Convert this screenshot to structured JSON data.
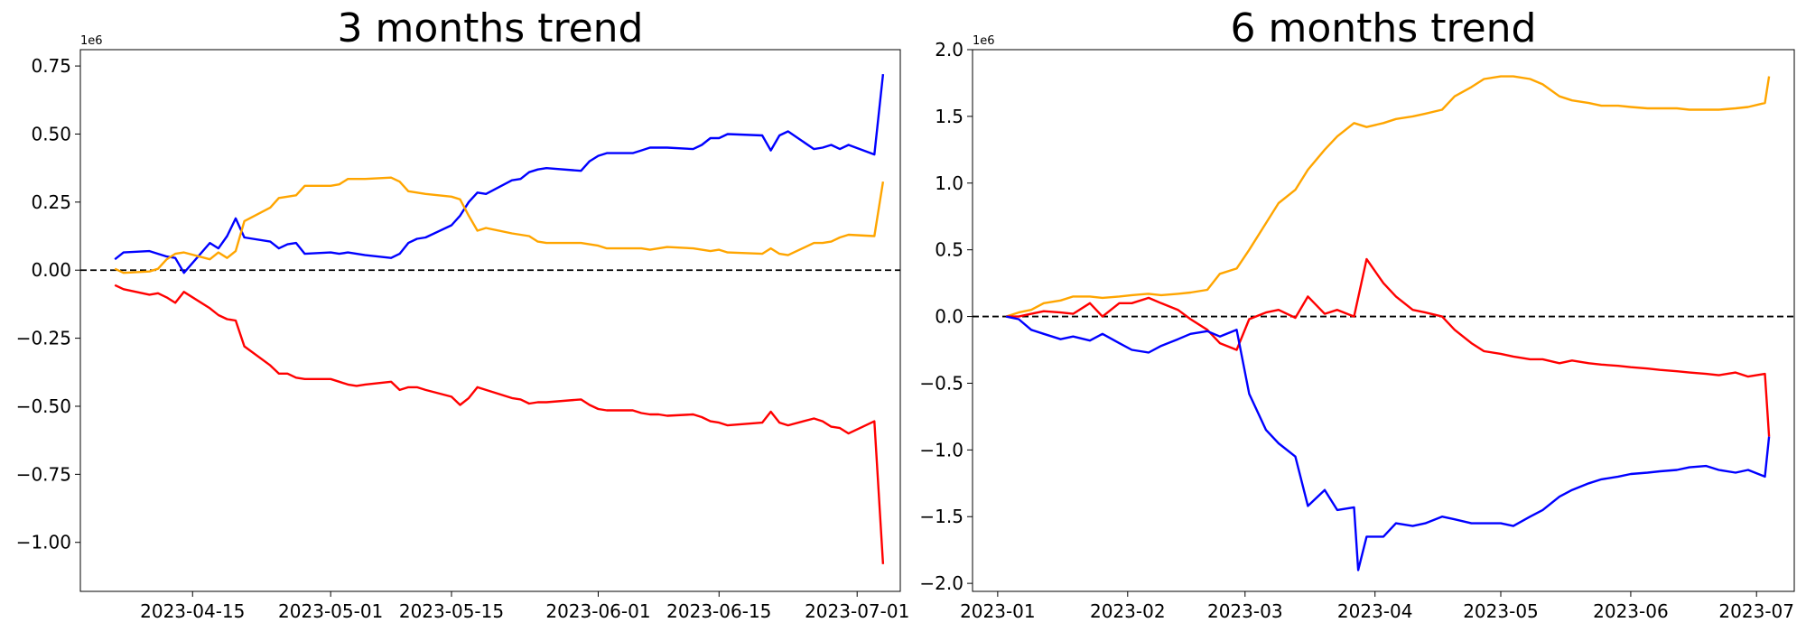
{
  "chart_data": [
    {
      "type": "line",
      "title": "3 months trend",
      "xlabel": "",
      "ylabel": "",
      "y_offset_label": "1e6",
      "xlim": [
        "2023-04-02",
        "2023-07-06"
      ],
      "ylim": [
        -1.18,
        0.81
      ],
      "x_ticks": [
        "2023-04-15",
        "2023-05-01",
        "2023-05-15",
        "2023-06-01",
        "2023-06-15",
        "2023-07-01"
      ],
      "y_ticks": [
        0.75,
        0.5,
        0.25,
        0.0,
        -0.25,
        -0.5,
        -0.75,
        -1.0
      ],
      "y_tick_labels": [
        "0.75",
        "0.50",
        "0.25",
        "0.00",
        "−0.25",
        "−0.50",
        "−0.75",
        "−1.00"
      ],
      "reference_line": {
        "y": 0,
        "style": "dashed",
        "color": "#000000"
      },
      "grid": false,
      "series": [
        {
          "color": "#0000ff",
          "x": [
            "2023-04-06",
            "2023-04-07",
            "2023-04-10",
            "2023-04-11",
            "2023-04-12",
            "2023-04-13",
            "2023-04-14",
            "2023-04-17",
            "2023-04-18",
            "2023-04-19",
            "2023-04-20",
            "2023-04-21",
            "2023-04-24",
            "2023-04-25",
            "2023-04-26",
            "2023-04-27",
            "2023-04-28",
            "2023-05-01",
            "2023-05-02",
            "2023-05-03",
            "2023-05-04",
            "2023-05-05",
            "2023-05-08",
            "2023-05-09",
            "2023-05-10",
            "2023-05-11",
            "2023-05-12",
            "2023-05-15",
            "2023-05-16",
            "2023-05-17",
            "2023-05-18",
            "2023-05-19",
            "2023-05-22",
            "2023-05-23",
            "2023-05-24",
            "2023-05-25",
            "2023-05-26",
            "2023-05-30",
            "2023-05-31",
            "2023-06-01",
            "2023-06-02",
            "2023-06-05",
            "2023-06-06",
            "2023-06-07",
            "2023-06-08",
            "2023-06-09",
            "2023-06-12",
            "2023-06-13",
            "2023-06-14",
            "2023-06-15",
            "2023-06-16",
            "2023-06-20",
            "2023-06-21",
            "2023-06-22",
            "2023-06-23",
            "2023-06-26",
            "2023-06-27",
            "2023-06-28",
            "2023-06-29",
            "2023-06-30",
            "2023-07-03",
            "2023-07-04"
          ],
          "values": [
            0.04,
            0.065,
            0.07,
            0.06,
            0.05,
            0.045,
            -0.01,
            0.1,
            0.08,
            0.125,
            0.19,
            0.12,
            0.105,
            0.08,
            0.095,
            0.1,
            0.06,
            0.065,
            0.06,
            0.065,
            0.06,
            0.055,
            0.045,
            0.06,
            0.1,
            0.115,
            0.12,
            0.165,
            0.2,
            0.25,
            0.285,
            0.28,
            0.33,
            0.335,
            0.36,
            0.37,
            0.375,
            0.365,
            0.4,
            0.42,
            0.43,
            0.43,
            0.44,
            0.45,
            0.45,
            0.45,
            0.445,
            0.46,
            0.485,
            0.485,
            0.5,
            0.495,
            0.44,
            0.495,
            0.51,
            0.445,
            0.45,
            0.46,
            0.445,
            0.46,
            0.425,
            0.72
          ]
        },
        {
          "color": "#ffa500",
          "x": [
            "2023-04-06",
            "2023-04-07",
            "2023-04-10",
            "2023-04-11",
            "2023-04-12",
            "2023-04-13",
            "2023-04-14",
            "2023-04-17",
            "2023-04-18",
            "2023-04-19",
            "2023-04-20",
            "2023-04-21",
            "2023-04-24",
            "2023-04-25",
            "2023-04-26",
            "2023-04-27",
            "2023-04-28",
            "2023-05-01",
            "2023-05-02",
            "2023-05-03",
            "2023-05-04",
            "2023-05-05",
            "2023-05-08",
            "2023-05-09",
            "2023-05-10",
            "2023-05-11",
            "2023-05-12",
            "2023-05-15",
            "2023-05-16",
            "2023-05-17",
            "2023-05-18",
            "2023-05-19",
            "2023-05-22",
            "2023-05-23",
            "2023-05-24",
            "2023-05-25",
            "2023-05-26",
            "2023-05-30",
            "2023-05-31",
            "2023-06-01",
            "2023-06-02",
            "2023-06-05",
            "2023-06-06",
            "2023-06-07",
            "2023-06-08",
            "2023-06-09",
            "2023-06-12",
            "2023-06-13",
            "2023-06-14",
            "2023-06-15",
            "2023-06-16",
            "2023-06-20",
            "2023-06-21",
            "2023-06-22",
            "2023-06-23",
            "2023-06-26",
            "2023-06-27",
            "2023-06-28",
            "2023-06-29",
            "2023-06-30",
            "2023-07-03",
            "2023-07-04"
          ],
          "values": [
            0.005,
            -0.01,
            -0.005,
            0.005,
            0.04,
            0.06,
            0.065,
            0.04,
            0.065,
            0.045,
            0.07,
            0.18,
            0.23,
            0.265,
            0.27,
            0.275,
            0.31,
            0.31,
            0.315,
            0.335,
            0.335,
            0.335,
            0.34,
            0.325,
            0.29,
            0.285,
            0.28,
            0.27,
            0.26,
            0.2,
            0.145,
            0.155,
            0.135,
            0.13,
            0.125,
            0.105,
            0.1,
            0.1,
            0.095,
            0.09,
            0.08,
            0.08,
            0.08,
            0.075,
            0.08,
            0.085,
            0.08,
            0.075,
            0.07,
            0.075,
            0.065,
            0.06,
            0.08,
            0.06,
            0.055,
            0.1,
            0.1,
            0.105,
            0.12,
            0.13,
            0.125,
            0.325
          ]
        },
        {
          "color": "#ff0000",
          "x": [
            "2023-04-06",
            "2023-04-07",
            "2023-04-10",
            "2023-04-11",
            "2023-04-12",
            "2023-04-13",
            "2023-04-14",
            "2023-04-17",
            "2023-04-18",
            "2023-04-19",
            "2023-04-20",
            "2023-04-21",
            "2023-04-24",
            "2023-04-25",
            "2023-04-26",
            "2023-04-27",
            "2023-04-28",
            "2023-05-01",
            "2023-05-02",
            "2023-05-03",
            "2023-05-04",
            "2023-05-05",
            "2023-05-08",
            "2023-05-09",
            "2023-05-10",
            "2023-05-11",
            "2023-05-12",
            "2023-05-15",
            "2023-05-16",
            "2023-05-17",
            "2023-05-18",
            "2023-05-19",
            "2023-05-22",
            "2023-05-23",
            "2023-05-24",
            "2023-05-25",
            "2023-05-26",
            "2023-05-30",
            "2023-05-31",
            "2023-06-01",
            "2023-06-02",
            "2023-06-05",
            "2023-06-06",
            "2023-06-07",
            "2023-06-08",
            "2023-06-09",
            "2023-06-12",
            "2023-06-13",
            "2023-06-14",
            "2023-06-15",
            "2023-06-16",
            "2023-06-20",
            "2023-06-21",
            "2023-06-22",
            "2023-06-23",
            "2023-06-26",
            "2023-06-27",
            "2023-06-28",
            "2023-06-29",
            "2023-06-30",
            "2023-07-03",
            "2023-07-04"
          ],
          "values": [
            -0.055,
            -0.07,
            -0.09,
            -0.085,
            -0.1,
            -0.12,
            -0.08,
            -0.14,
            -0.165,
            -0.18,
            -0.185,
            -0.28,
            -0.35,
            -0.38,
            -0.38,
            -0.395,
            -0.4,
            -0.4,
            -0.41,
            -0.42,
            -0.425,
            -0.42,
            -0.41,
            -0.44,
            -0.43,
            -0.43,
            -0.44,
            -0.465,
            -0.495,
            -0.47,
            -0.43,
            -0.44,
            -0.47,
            -0.475,
            -0.49,
            -0.485,
            -0.485,
            -0.475,
            -0.495,
            -0.51,
            -0.515,
            -0.515,
            -0.525,
            -0.53,
            -0.53,
            -0.535,
            -0.53,
            -0.54,
            -0.555,
            -0.56,
            -0.57,
            -0.56,
            -0.52,
            -0.56,
            -0.57,
            -0.545,
            -0.555,
            -0.575,
            -0.58,
            -0.6,
            -0.555,
            -1.08
          ]
        }
      ]
    },
    {
      "type": "line",
      "title": "6 months trend",
      "xlabel": "",
      "ylabel": "",
      "y_offset_label": "1e6",
      "xlim": [
        "2022-12-26",
        "2023-07-10"
      ],
      "ylim": [
        -2.06,
        2.0
      ],
      "x_ticks": [
        "2023-01",
        "2023-02",
        "2023-03",
        "2023-04",
        "2023-05",
        "2023-06",
        "2023-07"
      ],
      "y_ticks": [
        2.0,
        1.5,
        1.0,
        0.5,
        0.0,
        -0.5,
        -1.0,
        -1.5,
        -2.0
      ],
      "y_tick_labels": [
        "2.0",
        "1.5",
        "1.0",
        "0.5",
        "0.0",
        "−0.5",
        "−1.0",
        "−1.5",
        "−2.0"
      ],
      "reference_line": {
        "y": 0,
        "style": "dashed",
        "color": "#000000"
      },
      "grid": false,
      "series": [
        {
          "color": "#ffa500",
          "x": [
            "2023-01-03",
            "2023-01-06",
            "2023-01-09",
            "2023-01-12",
            "2023-01-16",
            "2023-01-19",
            "2023-01-23",
            "2023-01-26",
            "2023-01-30",
            "2023-02-02",
            "2023-02-06",
            "2023-02-09",
            "2023-02-13",
            "2023-02-16",
            "2023-02-20",
            "2023-02-23",
            "2023-02-27",
            "2023-03-02",
            "2023-03-06",
            "2023-03-09",
            "2023-03-13",
            "2023-03-16",
            "2023-03-20",
            "2023-03-23",
            "2023-03-27",
            "2023-03-30",
            "2023-04-03",
            "2023-04-06",
            "2023-04-10",
            "2023-04-13",
            "2023-04-17",
            "2023-04-20",
            "2023-04-24",
            "2023-04-27",
            "2023-05-01",
            "2023-05-04",
            "2023-05-08",
            "2023-05-11",
            "2023-05-15",
            "2023-05-18",
            "2023-05-22",
            "2023-05-25",
            "2023-05-29",
            "2023-06-01",
            "2023-06-05",
            "2023-06-08",
            "2023-06-12",
            "2023-06-15",
            "2023-06-19",
            "2023-06-22",
            "2023-06-26",
            "2023-06-29",
            "2023-07-03",
            "2023-07-04"
          ],
          "values": [
            0.0,
            0.03,
            0.05,
            0.1,
            0.12,
            0.15,
            0.15,
            0.14,
            0.15,
            0.16,
            0.17,
            0.16,
            0.17,
            0.18,
            0.2,
            0.32,
            0.36,
            0.5,
            0.7,
            0.85,
            0.95,
            1.1,
            1.25,
            1.35,
            1.45,
            1.42,
            1.45,
            1.48,
            1.5,
            1.52,
            1.55,
            1.65,
            1.72,
            1.78,
            1.8,
            1.8,
            1.78,
            1.74,
            1.65,
            1.62,
            1.6,
            1.58,
            1.58,
            1.57,
            1.56,
            1.56,
            1.56,
            1.55,
            1.55,
            1.55,
            1.56,
            1.57,
            1.6,
            1.8
          ]
        },
        {
          "color": "#ff0000",
          "x": [
            "2023-01-03",
            "2023-01-06",
            "2023-01-09",
            "2023-01-12",
            "2023-01-16",
            "2023-01-19",
            "2023-01-23",
            "2023-01-26",
            "2023-01-30",
            "2023-02-02",
            "2023-02-06",
            "2023-02-09",
            "2023-02-13",
            "2023-02-16",
            "2023-02-20",
            "2023-02-23",
            "2023-02-27",
            "2023-03-02",
            "2023-03-06",
            "2023-03-09",
            "2023-03-13",
            "2023-03-16",
            "2023-03-20",
            "2023-03-23",
            "2023-03-27",
            "2023-03-30",
            "2023-04-03",
            "2023-04-06",
            "2023-04-10",
            "2023-04-13",
            "2023-04-17",
            "2023-04-20",
            "2023-04-24",
            "2023-04-27",
            "2023-05-01",
            "2023-05-04",
            "2023-05-08",
            "2023-05-11",
            "2023-05-15",
            "2023-05-18",
            "2023-05-22",
            "2023-05-25",
            "2023-05-29",
            "2023-06-01",
            "2023-06-05",
            "2023-06-08",
            "2023-06-12",
            "2023-06-15",
            "2023-06-19",
            "2023-06-22",
            "2023-06-26",
            "2023-06-29",
            "2023-07-03",
            "2023-07-04"
          ],
          "values": [
            0.0,
            0.0,
            0.02,
            0.04,
            0.03,
            0.02,
            0.1,
            0.0,
            0.1,
            0.1,
            0.14,
            0.1,
            0.05,
            -0.02,
            -0.1,
            -0.2,
            -0.25,
            -0.02,
            0.03,
            0.05,
            -0.01,
            0.15,
            0.02,
            0.05,
            0.0,
            0.43,
            0.25,
            0.15,
            0.05,
            0.03,
            0.0,
            -0.1,
            -0.2,
            -0.26,
            -0.28,
            -0.3,
            -0.32,
            -0.32,
            -0.35,
            -0.33,
            -0.35,
            -0.36,
            -0.37,
            -0.38,
            -0.39,
            -0.4,
            -0.41,
            -0.42,
            -0.43,
            -0.44,
            -0.42,
            -0.45,
            -0.43,
            -0.9
          ]
        },
        {
          "color": "#0000ff",
          "x": [
            "2023-01-03",
            "2023-01-06",
            "2023-01-09",
            "2023-01-12",
            "2023-01-16",
            "2023-01-19",
            "2023-01-23",
            "2023-01-26",
            "2023-01-30",
            "2023-02-02",
            "2023-02-06",
            "2023-02-09",
            "2023-02-13",
            "2023-02-16",
            "2023-02-20",
            "2023-02-23",
            "2023-02-27",
            "2023-03-02",
            "2023-03-06",
            "2023-03-09",
            "2023-03-13",
            "2023-03-16",
            "2023-03-20",
            "2023-03-23",
            "2023-03-27",
            "2023-03-28",
            "2023-03-30",
            "2023-04-03",
            "2023-04-06",
            "2023-04-10",
            "2023-04-13",
            "2023-04-17",
            "2023-04-20",
            "2023-04-24",
            "2023-04-27",
            "2023-05-01",
            "2023-05-04",
            "2023-05-08",
            "2023-05-11",
            "2023-05-15",
            "2023-05-18",
            "2023-05-22",
            "2023-05-25",
            "2023-05-29",
            "2023-06-01",
            "2023-06-05",
            "2023-06-08",
            "2023-06-12",
            "2023-06-15",
            "2023-06-19",
            "2023-06-22",
            "2023-06-26",
            "2023-06-29",
            "2023-07-03",
            "2023-07-04"
          ],
          "values": [
            0.0,
            -0.02,
            -0.1,
            -0.13,
            -0.17,
            -0.15,
            -0.18,
            -0.13,
            -0.2,
            -0.25,
            -0.27,
            -0.22,
            -0.17,
            -0.13,
            -0.11,
            -0.15,
            -0.1,
            -0.58,
            -0.85,
            -0.95,
            -1.05,
            -1.42,
            -1.3,
            -1.45,
            -1.43,
            -1.9,
            -1.65,
            -1.65,
            -1.55,
            -1.57,
            -1.55,
            -1.5,
            -1.52,
            -1.55,
            -1.55,
            -1.55,
            -1.57,
            -1.5,
            -1.45,
            -1.35,
            -1.3,
            -1.25,
            -1.22,
            -1.2,
            -1.18,
            -1.17,
            -1.16,
            -1.15,
            -1.13,
            -1.12,
            -1.15,
            -1.17,
            -1.15,
            -1.2,
            -0.9
          ]
        }
      ]
    }
  ]
}
